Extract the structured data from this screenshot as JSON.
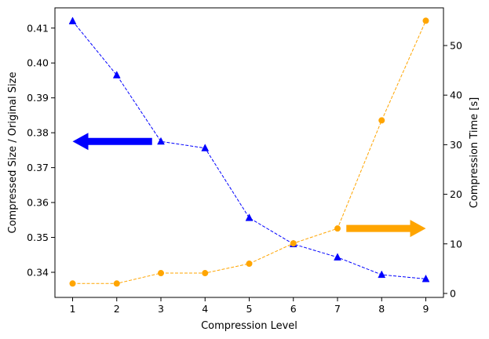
{
  "chart_data": {
    "type": "line",
    "xlabel": "Compression Level",
    "ylabel_left": "Compressed Size / Original Size",
    "ylabel_right": "Compression Time [s]",
    "x": [
      1,
      2,
      3,
      4,
      5,
      6,
      7,
      8,
      9
    ],
    "xlim": [
      0.6,
      9.4
    ],
    "ylim_left": [
      0.3328,
      0.4158
    ],
    "ylim_right": [
      -0.8,
      57.6
    ],
    "x_ticks": [
      "1",
      "2",
      "3",
      "4",
      "5",
      "6",
      "7",
      "8",
      "9"
    ],
    "y_left_ticks": [
      "0.34",
      "0.35",
      "0.36",
      "0.37",
      "0.38",
      "0.39",
      "0.40",
      "0.41"
    ],
    "y_right_ticks": [
      "0",
      "10",
      "20",
      "30",
      "40",
      "50"
    ],
    "grid": false,
    "series": [
      {
        "axis": "left",
        "color": "#0000ff",
        "marker": "triangle-up",
        "line_style": "dashed",
        "values": [
          0.412,
          0.3965,
          0.3775,
          0.3756,
          0.3556,
          0.3481,
          0.3443,
          0.3393,
          0.3381
        ]
      },
      {
        "axis": "right",
        "color": "#ffa500",
        "marker": "circle",
        "line_style": "dashed",
        "values": [
          2.0,
          2.0,
          4.1,
          4.1,
          6.0,
          10.1,
          13.1,
          34.9,
          55.0
        ]
      }
    ],
    "annotations": [
      {
        "kind": "arrow",
        "direction": "left",
        "color": "#0000ff",
        "meaning": "left-axis"
      },
      {
        "kind": "arrow",
        "direction": "right",
        "color": "#ffa500",
        "meaning": "right-axis"
      }
    ]
  }
}
